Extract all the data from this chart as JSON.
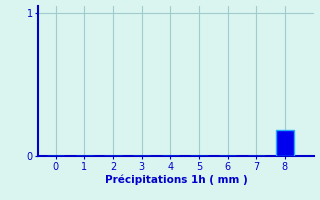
{
  "categories": [
    0,
    1,
    2,
    3,
    4,
    5,
    6,
    7,
    8
  ],
  "values": [
    0,
    0,
    0,
    0,
    0,
    0,
    0,
    0,
    0.18
  ],
  "bar_color": "#0000ee",
  "bar_edge_color": "#22aaff",
  "background_color": "#daf5f0",
  "axis_color": "#0000cc",
  "grid_color": "#a0cccc",
  "xlabel": "Précipitations 1h ( mm )",
  "xlabel_color": "#0000cc",
  "tick_color": "#0000cc",
  "xlabel_fontsize": 7.5,
  "tick_fontsize": 7,
  "xlim": [
    -0.6,
    9.0
  ],
  "ylim": [
    0,
    1.05
  ],
  "yticks": [
    0,
    1
  ],
  "xticks": [
    0,
    1,
    2,
    3,
    4,
    5,
    6,
    7,
    8
  ],
  "bar_width": 0.6
}
